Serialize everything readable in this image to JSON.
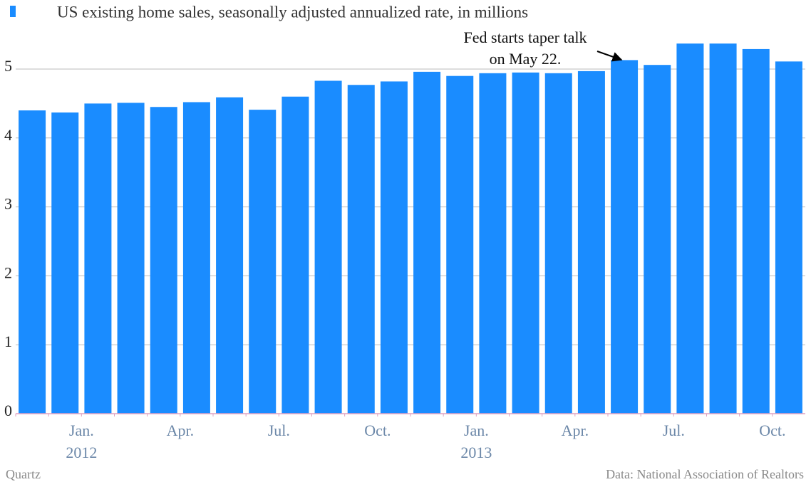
{
  "chart_data": {
    "type": "bar",
    "series": [
      {
        "name": "US existing home sales, seasonally adjusted annualized rate, in millions",
        "color": "#1a8cff",
        "values": [
          4.4,
          4.37,
          4.5,
          4.51,
          4.45,
          4.52,
          4.59,
          4.41,
          4.6,
          4.83,
          4.77,
          4.82,
          4.96,
          4.9,
          4.94,
          4.95,
          4.94,
          4.97,
          5.13,
          5.06,
          5.37,
          5.37,
          5.29,
          5.11
        ]
      }
    ],
    "categories": [
      null,
      null,
      "Jan.",
      null,
      null,
      "Apr.",
      null,
      null,
      "Jul.",
      null,
      null,
      "Oct.",
      null,
      null,
      "Jan.",
      null,
      null,
      "Apr.",
      null,
      null,
      "Jul.",
      null,
      null,
      "Oct."
    ],
    "year_labels": [
      null,
      null,
      "2012",
      null,
      null,
      null,
      null,
      null,
      null,
      null,
      null,
      null,
      null,
      null,
      "2013",
      null,
      null,
      null,
      null,
      null,
      null,
      null,
      null,
      null
    ],
    "ylim": [
      0,
      5.5
    ],
    "yticks": [
      0,
      1,
      2,
      3,
      4,
      5
    ],
    "grid": true,
    "annotation": {
      "lines": [
        "Fed starts taper talk",
        "on May 22."
      ],
      "index": 18
    },
    "source": "Data: National Association of Realtors",
    "credit": "Quartz"
  }
}
